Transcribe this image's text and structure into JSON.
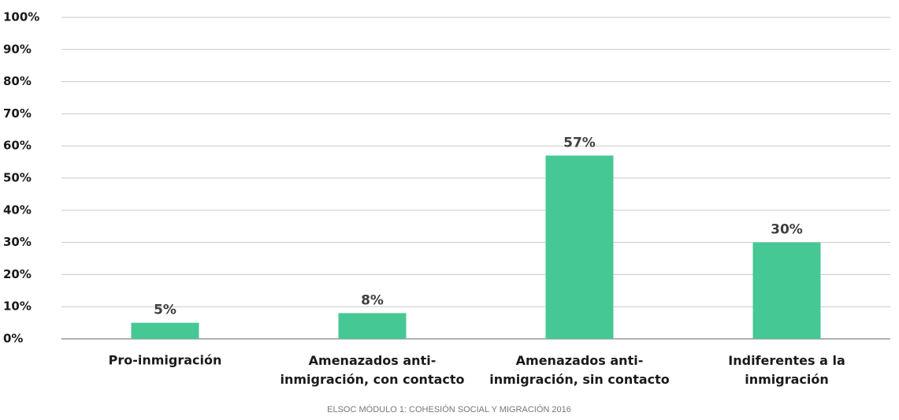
{
  "chart_data": {
    "type": "bar",
    "categories": [
      "Pro-inmigración",
      "Amenazados anti-\ninmigración, con contacto",
      "Amenazados anti-\ninmigración, sin contacto",
      "Indiferentes a la\ninmigración"
    ],
    "values": [
      5,
      8,
      57,
      30
    ],
    "value_labels": [
      "5%",
      "8%",
      "57%",
      "30%"
    ],
    "color": "#45c894",
    "ylim": [
      0,
      100
    ],
    "yticks": [
      {
        "value": 0,
        "label": "0%"
      },
      {
        "value": 10,
        "label": "10%"
      },
      {
        "value": 20,
        "label": "20%"
      },
      {
        "value": 30,
        "label": "30%"
      },
      {
        "value": 40,
        "label": "40%"
      },
      {
        "value": 50,
        "label": "50%"
      },
      {
        "value": 60,
        "label": "60%"
      },
      {
        "value": 70,
        "label": "70%"
      },
      {
        "value": 80,
        "label": "80%"
      },
      {
        "value": 90,
        "label": "90%"
      },
      {
        "value": 100,
        "label": "100%"
      }
    ],
    "grid": true,
    "source": "ELSOC MÓDULO 1: COHESIÓN SOCIAL Y  MIGRACIÓN 2016"
  }
}
